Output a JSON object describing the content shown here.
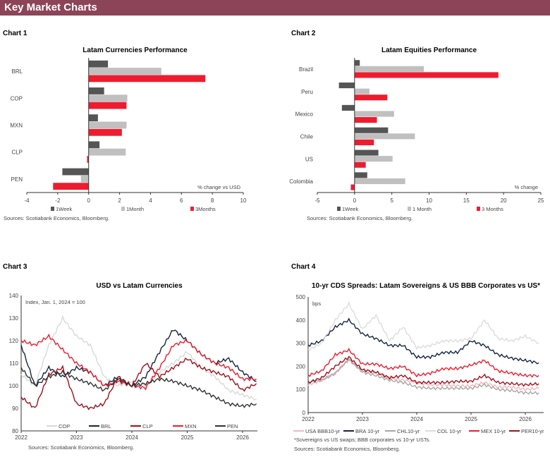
{
  "header": {
    "title": "Key Market Charts"
  },
  "colors": {
    "header": "#8c4458",
    "week": "#555555",
    "month": "#c0c0c0",
    "three_months": "#ee1c2e"
  },
  "chart_data": [
    {
      "label": "Chart 1",
      "type": "bar",
      "orientation": "horizontal",
      "title": "Latam Currencies Performance",
      "categories": [
        "BRL",
        "COP",
        "MXN",
        "CLP",
        "PEN"
      ],
      "series": [
        {
          "name": "1Week",
          "values": [
            1.25,
            1.0,
            0.6,
            0.7,
            -1.7
          ]
        },
        {
          "name": "1Month",
          "values": [
            4.7,
            2.5,
            2.45,
            2.4,
            -0.5
          ]
        },
        {
          "name": "3Months",
          "values": [
            7.55,
            2.45,
            2.15,
            -0.1,
            -2.3
          ]
        }
      ],
      "xlabel": "% change vs USD",
      "xlim": [
        -4,
        10
      ],
      "xticks": [
        "-4",
        "-2",
        "0",
        "2",
        "4",
        "6",
        "8",
        "10"
      ],
      "source": "Sources: Scotiabank Economics, Bloomberg."
    },
    {
      "label": "Chart 2",
      "type": "bar",
      "orientation": "horizontal",
      "title": "Latam Equities Performance",
      "categories": [
        "Brazil",
        "Peru",
        "Mexico",
        "Chile",
        "US",
        "Colombia"
      ],
      "series": [
        {
          "name": "1Week",
          "values": [
            0.7,
            -2.1,
            -1.7,
            4.5,
            3.2,
            1.7
          ]
        },
        {
          "name": "1 Month",
          "values": [
            9.3,
            2.0,
            5.3,
            8.1,
            5.1,
            6.8
          ]
        },
        {
          "name": "3 Months",
          "values": [
            19.3,
            4.4,
            3.0,
            2.6,
            1.5,
            -0.5
          ]
        }
      ],
      "xlabel": "% change",
      "xlim": [
        -5,
        25
      ],
      "xticks": [
        "-5",
        "0",
        "5",
        "10",
        "15",
        "20",
        "25"
      ],
      "source": "Sources: Scotiabank Economics, Bloomberg."
    },
    {
      "label": "Chart 3",
      "type": "line",
      "title": "USD vs Latam Currencies",
      "ylabel": "Index, Jan. 1, 2024 = 100",
      "ylim": [
        80,
        140
      ],
      "yticks": [
        "80",
        "90",
        "100",
        "110",
        "120",
        "130",
        "140"
      ],
      "xticks": [
        "2022",
        "2023",
        "2024",
        "2025",
        "2026"
      ],
      "x": [
        "2022-01",
        "2022-04",
        "2022-07",
        "2022-10",
        "2023-01",
        "2023-04",
        "2023-07",
        "2023-10",
        "2024-01",
        "2024-04",
        "2024-07",
        "2024-10",
        "2025-01",
        "2025-04",
        "2025-07",
        "2025-10",
        "2026-01",
        "2026-04"
      ],
      "series": [
        {
          "name": "COP",
          "color": "#d9d9d9",
          "values": [
            105,
            100,
            118,
            130,
            122,
            118,
            104,
            100,
            102,
            100,
            106,
            110,
            115,
            108,
            104,
            98,
            96,
            94
          ]
        },
        {
          "name": "BRL",
          "color": "#14263f",
          "values": [
            118,
            100,
            108,
            104,
            108,
            106,
            100,
            104,
            100,
            104,
            115,
            125,
            120,
            114,
            110,
            112,
            106,
            102
          ]
        },
        {
          "name": "CLP",
          "color": "#a0101c",
          "values": [
            95,
            90,
            105,
            108,
            92,
            90,
            92,
            104,
            100,
            110,
            104,
            108,
            112,
            108,
            106,
            104,
            98,
            101
          ]
        },
        {
          "name": "MXN",
          "color": "#ee1c2e",
          "values": [
            120,
            118,
            122,
            116,
            110,
            106,
            100,
            102,
            100,
            99,
            108,
            118,
            120,
            114,
            110,
            108,
            103,
            103
          ]
        },
        {
          "name": "PEN",
          "color": "#333333",
          "values": [
            108,
            100,
            104,
            106,
            103,
            101,
            98,
            103,
            100,
            101,
            103,
            102,
            100,
            98,
            95,
            92,
            91,
            92
          ]
        }
      ],
      "source": "Sources: Scotiabank Economics, Bloomberg."
    },
    {
      "label": "Chart 4",
      "type": "line",
      "title": "10-yr CDS Spreads: Latam Sovereigns & US BBB Corporates vs US*",
      "ylabel": "bps",
      "ylim": [
        0,
        500
      ],
      "yticks": [
        "0",
        "100",
        "200",
        "300",
        "400",
        "500"
      ],
      "xticks": [
        "2022",
        "2023",
        "2024",
        "2025",
        "2026"
      ],
      "x": [
        "2022-01",
        "2022-04",
        "2022-07",
        "2022-10",
        "2023-01",
        "2023-04",
        "2023-07",
        "2023-10",
        "2024-01",
        "2024-04",
        "2024-07",
        "2024-10",
        "2025-01",
        "2025-04",
        "2025-07",
        "2025-10",
        "2026-01",
        "2026-04"
      ],
      "series": [
        {
          "name": "USA BBB10-yr",
          "color": "#f4b6bc",
          "values": [
            120,
            140,
            170,
            230,
            180,
            170,
            150,
            140,
            130,
            120,
            120,
            115,
            115,
            130,
            110,
            110,
            100,
            105
          ]
        },
        {
          "name": "BRA 10-yr",
          "color": "#14263f",
          "values": [
            290,
            310,
            370,
            400,
            340,
            320,
            290,
            290,
            240,
            240,
            260,
            260,
            310,
            290,
            250,
            235,
            225,
            215
          ]
        },
        {
          "name": "CHL10-yr",
          "color": "#a6a6a6",
          "values": [
            130,
            140,
            170,
            230,
            175,
            160,
            140,
            130,
            110,
            105,
            105,
            105,
            105,
            120,
            100,
            95,
            85,
            85
          ]
        },
        {
          "name": "COL 10-yr",
          "color": "#dcdcdc",
          "values": [
            270,
            300,
            400,
            470,
            360,
            420,
            310,
            370,
            280,
            290,
            310,
            310,
            320,
            400,
            320,
            310,
            330,
            300
          ]
        },
        {
          "name": "MEX 10-yr",
          "color": "#ee1c2e",
          "values": [
            160,
            180,
            250,
            270,
            210,
            210,
            190,
            200,
            160,
            170,
            190,
            190,
            205,
            225,
            180,
            170,
            160,
            160
          ]
        },
        {
          "name": "PER10-yr",
          "color": "#a0101c",
          "values": [
            130,
            150,
            200,
            240,
            185,
            175,
            150,
            160,
            130,
            130,
            130,
            135,
            135,
            160,
            130,
            125,
            120,
            125
          ]
        }
      ],
      "footnote": "*Sovereigns vs US swaps; BBB corporates vs 10-yr USTs.",
      "source": "Sources: Scotiabank Economics, Bloomberg."
    }
  ]
}
